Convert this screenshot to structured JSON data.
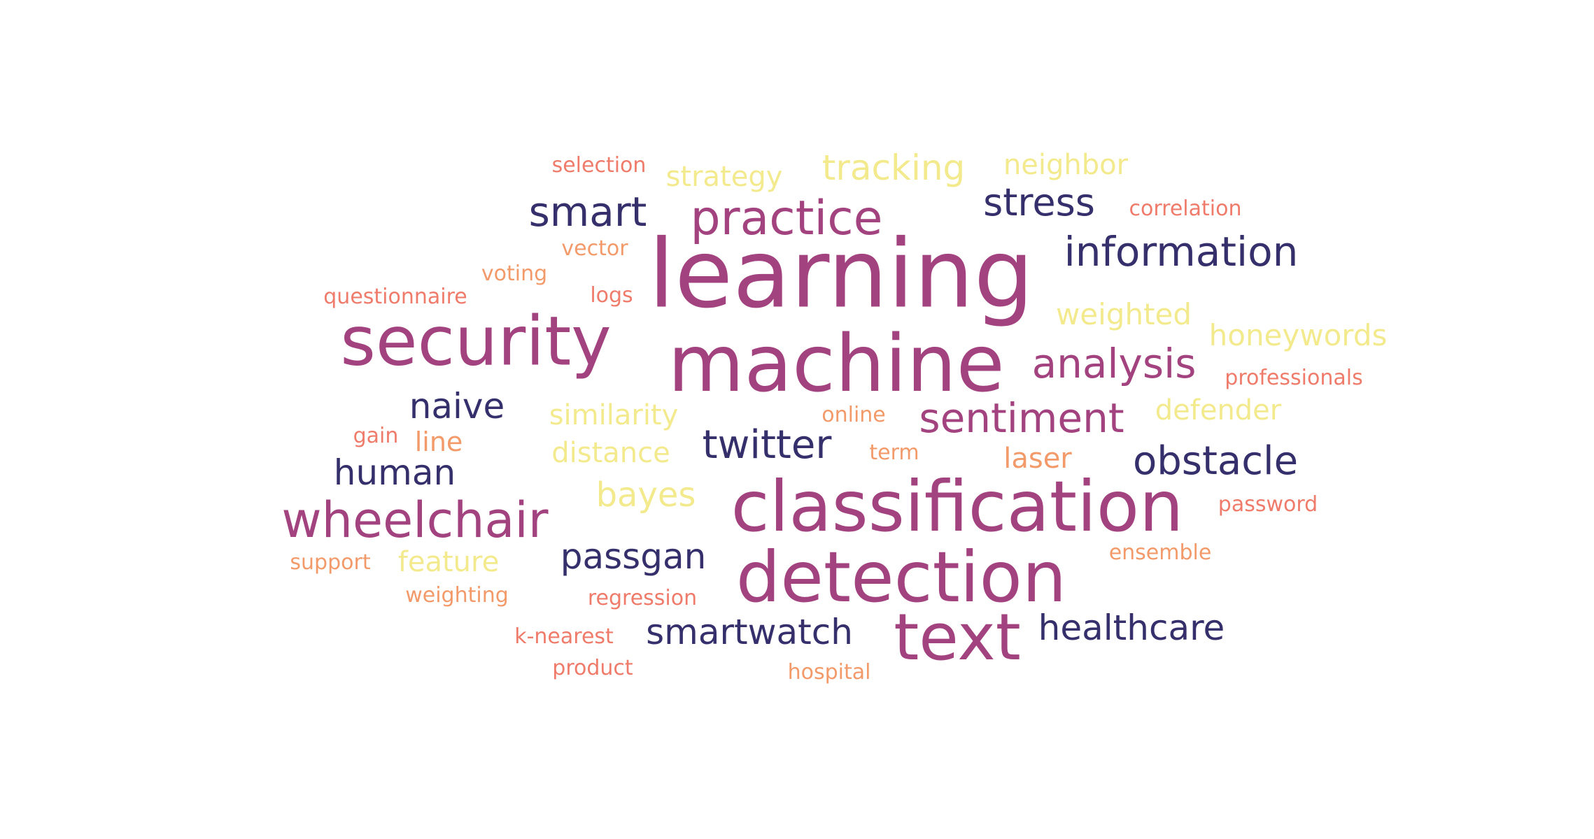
{
  "colors": {
    "dark": "#35306b",
    "magenta": "#a2437f",
    "salmon": "#ef7b6b",
    "orange": "#f29a6a",
    "yellow": "#f3ea8e"
  },
  "words": [
    {
      "text": "learning",
      "color": "magenta"
    },
    {
      "text": "machine",
      "color": "magenta"
    },
    {
      "text": "security",
      "color": "magenta"
    },
    {
      "text": "classification",
      "color": "magenta"
    },
    {
      "text": "detection",
      "color": "magenta"
    },
    {
      "text": "text",
      "color": "magenta"
    },
    {
      "text": "wheelchair",
      "color": "magenta"
    },
    {
      "text": "practice",
      "color": "magenta"
    },
    {
      "text": "analysis",
      "color": "magenta"
    },
    {
      "text": "sentiment",
      "color": "magenta"
    },
    {
      "text": "information",
      "color": "dark"
    },
    {
      "text": "smart",
      "color": "dark"
    },
    {
      "text": "stress",
      "color": "dark"
    },
    {
      "text": "obstacle",
      "color": "dark"
    },
    {
      "text": "twitter",
      "color": "dark"
    },
    {
      "text": "healthcare",
      "color": "dark"
    },
    {
      "text": "human",
      "color": "dark"
    },
    {
      "text": "naive",
      "color": "dark"
    },
    {
      "text": "passgan",
      "color": "dark"
    },
    {
      "text": "smartwatch",
      "color": "dark"
    },
    {
      "text": "tracking",
      "color": "yellow"
    },
    {
      "text": "neighbor",
      "color": "yellow"
    },
    {
      "text": "strategy",
      "color": "yellow"
    },
    {
      "text": "weighted",
      "color": "yellow"
    },
    {
      "text": "honeywords",
      "color": "yellow"
    },
    {
      "text": "similarity",
      "color": "yellow"
    },
    {
      "text": "defender",
      "color": "yellow"
    },
    {
      "text": "distance",
      "color": "yellow"
    },
    {
      "text": "bayes",
      "color": "yellow"
    },
    {
      "text": "feature",
      "color": "yellow"
    },
    {
      "text": "selection",
      "color": "salmon"
    },
    {
      "text": "correlation",
      "color": "salmon"
    },
    {
      "text": "vector",
      "color": "orange"
    },
    {
      "text": "voting",
      "color": "orange"
    },
    {
      "text": "questionnaire",
      "color": "salmon"
    },
    {
      "text": "logs",
      "color": "salmon"
    },
    {
      "text": "professionals",
      "color": "salmon"
    },
    {
      "text": "online",
      "color": "orange"
    },
    {
      "text": "gain",
      "color": "salmon"
    },
    {
      "text": "line",
      "color": "orange"
    },
    {
      "text": "term",
      "color": "orange"
    },
    {
      "text": "laser",
      "color": "orange"
    },
    {
      "text": "password",
      "color": "salmon"
    },
    {
      "text": "support",
      "color": "orange"
    },
    {
      "text": "ensemble",
      "color": "orange"
    },
    {
      "text": "weighting",
      "color": "orange"
    },
    {
      "text": "regression",
      "color": "salmon"
    },
    {
      "text": "k-nearest",
      "color": "salmon"
    },
    {
      "text": "product",
      "color": "salmon"
    },
    {
      "text": "hospital",
      "color": "orange"
    }
  ]
}
